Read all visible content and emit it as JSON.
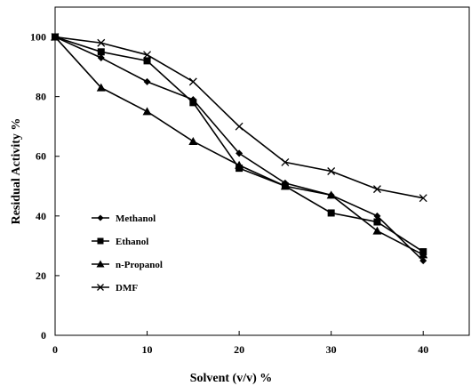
{
  "chart_data": {
    "type": "line",
    "xlabel": "Solvent (v/v) %",
    "ylabel": "Residual Activity %",
    "xlim": [
      0,
      45
    ],
    "ylim": [
      0,
      110
    ],
    "x_ticks": [
      0,
      10,
      20,
      30,
      40
    ],
    "y_ticks": [
      0,
      20,
      40,
      60,
      80,
      100
    ],
    "grid": false,
    "legend_position": "bottom-left",
    "series": [
      {
        "name": "Methanol",
        "marker": "diamond",
        "x": [
          0,
          5,
          10,
          15,
          20,
          25,
          30,
          35,
          40
        ],
        "y": [
          100,
          93,
          85,
          79,
          61,
          51,
          47,
          40,
          25
        ]
      },
      {
        "name": "Ethanol",
        "marker": "square",
        "x": [
          0,
          5,
          10,
          15,
          20,
          25,
          30,
          35,
          40
        ],
        "y": [
          100,
          95,
          92,
          78,
          56,
          50,
          41,
          38,
          28
        ]
      },
      {
        "name": "n-Propanol",
        "marker": "triangle",
        "x": [
          0,
          5,
          10,
          15,
          20,
          25,
          30,
          35,
          40
        ],
        "y": [
          100,
          83,
          75,
          65,
          57,
          50,
          47,
          35,
          27
        ]
      },
      {
        "name": "DMF",
        "marker": "x",
        "x": [
          0,
          5,
          10,
          15,
          20,
          25,
          30,
          35,
          40
        ],
        "y": [
          100,
          98,
          94,
          85,
          70,
          58,
          55,
          49,
          46
        ]
      }
    ]
  }
}
